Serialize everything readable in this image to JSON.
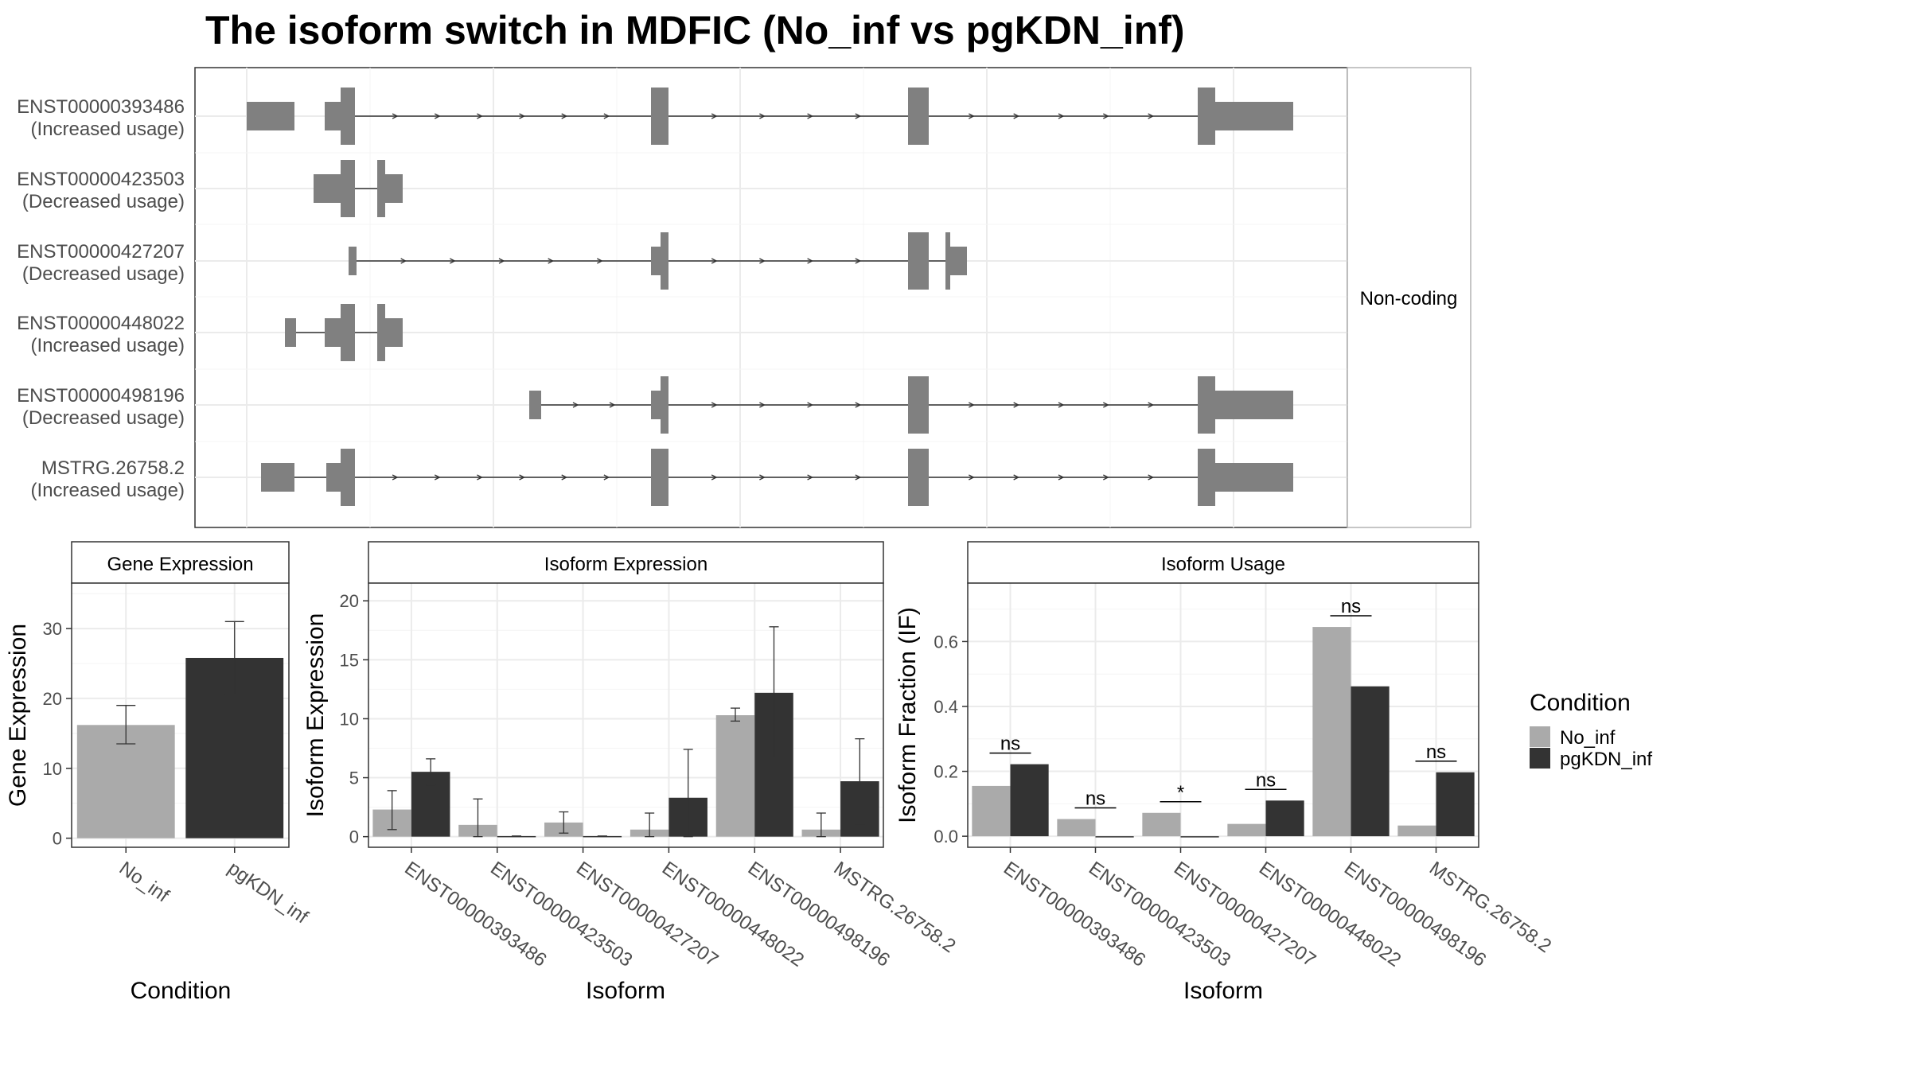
{
  "title": "The isoform switch in MDFIC (No_inf vs pgKDN_inf)",
  "colors": {
    "no_inf": "#aaaaaa",
    "pgkdn_inf": "#333333",
    "exon": "#808080",
    "grid": "#ebebeb",
    "frame": "#333333"
  },
  "structure": {
    "strip_label": "Non-coding",
    "isoforms": [
      {
        "id": "ENST00000393486",
        "usage": "(Increased usage)"
      },
      {
        "id": "ENST00000423503",
        "usage": "(Decreased usage)"
      },
      {
        "id": "ENST00000427207",
        "usage": "(Decreased usage)"
      },
      {
        "id": "ENST00000448022",
        "usage": "(Increased usage)"
      },
      {
        "id": "ENST00000498196",
        "usage": "(Decreased usage)"
      },
      {
        "id": "MSTRG.26758.2",
        "usage": "(Increased usage)"
      }
    ]
  },
  "legend": {
    "title": "Condition",
    "items": [
      "No_inf",
      "pgKDN_inf"
    ]
  },
  "chart_data": [
    {
      "type": "bar",
      "title": "Gene Expression",
      "xlabel": "Condition",
      "ylabel": "Gene Expression",
      "ylim": [
        -1.3,
        36.5
      ],
      "yticks": [
        "0",
        "10",
        "20",
        "30"
      ],
      "categories": [
        "No_inf",
        "pgKDN_inf"
      ],
      "values": [
        16.2,
        25.8
      ],
      "err_low": [
        13.5,
        20.6
      ],
      "err_high": [
        19.0,
        31.0
      ]
    },
    {
      "type": "bar",
      "title": "Isoform Expression",
      "xlabel": "Isoform",
      "ylabel": "Isoform Expression",
      "ylim": [
        -0.9,
        21.5
      ],
      "yticks": [
        "0",
        "5",
        "10",
        "15",
        "20"
      ],
      "categories": [
        "ENST00000393486",
        "ENST00000423503",
        "ENST00000427207",
        "ENST00000448022",
        "ENST00000498196",
        "MSTRG.26758.2"
      ],
      "series": [
        {
          "name": "No_inf",
          "values": [
            2.3,
            1.0,
            1.2,
            0.6,
            10.3,
            0.6
          ],
          "err_low": [
            0.6,
            0.0,
            0.3,
            0.0,
            9.8,
            0.0
          ],
          "err_high": [
            3.9,
            3.2,
            2.1,
            2.0,
            10.9,
            2.0
          ]
        },
        {
          "name": "pgKDN_inf",
          "values": [
            5.5,
            0.05,
            0.05,
            3.3,
            12.2,
            4.7
          ],
          "err_low": [
            4.4,
            0.05,
            0.05,
            0.0,
            6.7,
            1.0
          ],
          "err_high": [
            6.6,
            0.05,
            0.05,
            7.4,
            17.8,
            8.3
          ]
        }
      ]
    },
    {
      "type": "bar",
      "title": "Isoform Usage",
      "xlabel": "Isoform",
      "ylabel": "Isoform Fraction (IF)",
      "ylim": [
        -0.034,
        0.78
      ],
      "yticks": [
        "0.0",
        "0.2",
        "0.4",
        "0.6"
      ],
      "categories": [
        "ENST00000393486",
        "ENST00000423503",
        "ENST00000427207",
        "ENST00000448022",
        "ENST00000498196",
        "MSTRG.26758.2"
      ],
      "series": [
        {
          "name": "No_inf",
          "values": [
            0.155,
            0.053,
            0.072,
            0.038,
            0.645,
            0.033
          ]
        },
        {
          "name": "pgKDN_inf",
          "values": [
            0.222,
            0.0,
            0.0,
            0.11,
            0.462,
            0.197
          ]
        }
      ],
      "significance": [
        "ns",
        "ns",
        "*",
        "ns",
        "ns",
        "ns"
      ]
    }
  ]
}
